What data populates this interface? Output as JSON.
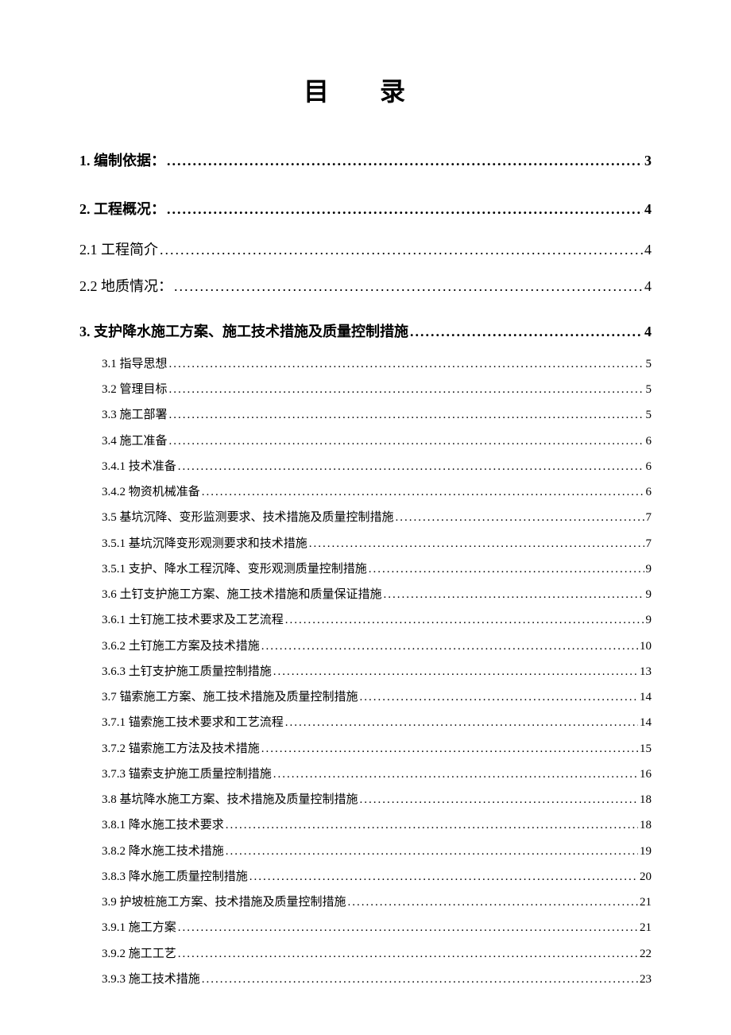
{
  "title": "目 录",
  "entries": [
    {
      "label": "1. 编制依据：",
      "page": "3",
      "level": "level-1"
    },
    {
      "label": "2. 工程概况：",
      "page": "4",
      "level": "level-1"
    },
    {
      "label": "2.1 工程简介",
      "page": "4",
      "level": "level-1b"
    },
    {
      "label": "2.2 地质情况：",
      "page": "4",
      "level": "level-1b"
    },
    {
      "label": "3. 支护降水施工方案、施工技术措施及质量控制措施",
      "page": "4",
      "level": "level-1"
    },
    {
      "label": "3.1 指导思想",
      "page": "5",
      "level": "level-2"
    },
    {
      "label": "3.2 管理目标",
      "page": "5",
      "level": "level-2"
    },
    {
      "label": "3.3 施工部署",
      "page": "5",
      "level": "level-2"
    },
    {
      "label": "3.4 施工准备",
      "page": "6",
      "level": "level-2"
    },
    {
      "label": "3.4.1 技术准备",
      "page": "6",
      "level": "level-2"
    },
    {
      "label": "3.4.2 物资机械准备",
      "page": "6",
      "level": "level-2"
    },
    {
      "label": "3.5 基坑沉降、变形监测要求、技术措施及质量控制措施",
      "page": "7",
      "level": "level-2"
    },
    {
      "label": "3.5.1 基坑沉降变形观测要求和技术措施",
      "page": "7",
      "level": "level-2"
    },
    {
      "label": "3.5.1 支护、降水工程沉降、变形观测质量控制措施",
      "page": "9",
      "level": "level-2"
    },
    {
      "label": "3.6 土钉支护施工方案、施工技术措施和质量保证措施",
      "page": "9",
      "level": "level-2"
    },
    {
      "label": "3.6.1 土钉施工技术要求及工艺流程",
      "page": "9",
      "level": "level-2"
    },
    {
      "label": "3.6.2 土钉施工方案及技术措施",
      "page": "10",
      "level": "level-2"
    },
    {
      "label": "3.6.3 土钉支护施工质量控制措施",
      "page": "13",
      "level": "level-2"
    },
    {
      "label": "3.7 锚索施工方案、施工技术措施及质量控制措施",
      "page": "14",
      "level": "level-2"
    },
    {
      "label": "3.7.1 锚索施工技术要求和工艺流程",
      "page": "14",
      "level": "level-2"
    },
    {
      "label": "3.7.2 锚索施工方法及技术措施",
      "page": "15",
      "level": "level-2"
    },
    {
      "label": "3.7.3 锚索支护施工质量控制措施",
      "page": "16",
      "level": "level-2"
    },
    {
      "label": "3.8 基坑降水施工方案、技术措施及质量控制措施",
      "page": "18",
      "level": "level-2"
    },
    {
      "label": "3.8.1 降水施工技术要求",
      "page": "18",
      "level": "level-2"
    },
    {
      "label": "3.8.2 降水施工技术措施",
      "page": "19",
      "level": "level-2"
    },
    {
      "label": "3.8.3 降水施工质量控制措施",
      "page": "20",
      "level": "level-2"
    },
    {
      "label": "3.9 护坡桩施工方案、技术措施及质量控制措施",
      "page": "21",
      "level": "level-2"
    },
    {
      "label": "3.9.1 施工方案",
      "page": "21",
      "level": "level-2"
    },
    {
      "label": "3.9.2 施工工艺",
      "page": "22",
      "level": "level-2"
    },
    {
      "label": "3.9.3 施工技术措施",
      "page": "23",
      "level": "level-2"
    }
  ],
  "leader_char": ".",
  "colors": {
    "text": "#000000",
    "background": "#ffffff"
  },
  "typography": {
    "title_fontsize": 32,
    "level1_fontsize": 18,
    "level2_fontsize": 15
  }
}
